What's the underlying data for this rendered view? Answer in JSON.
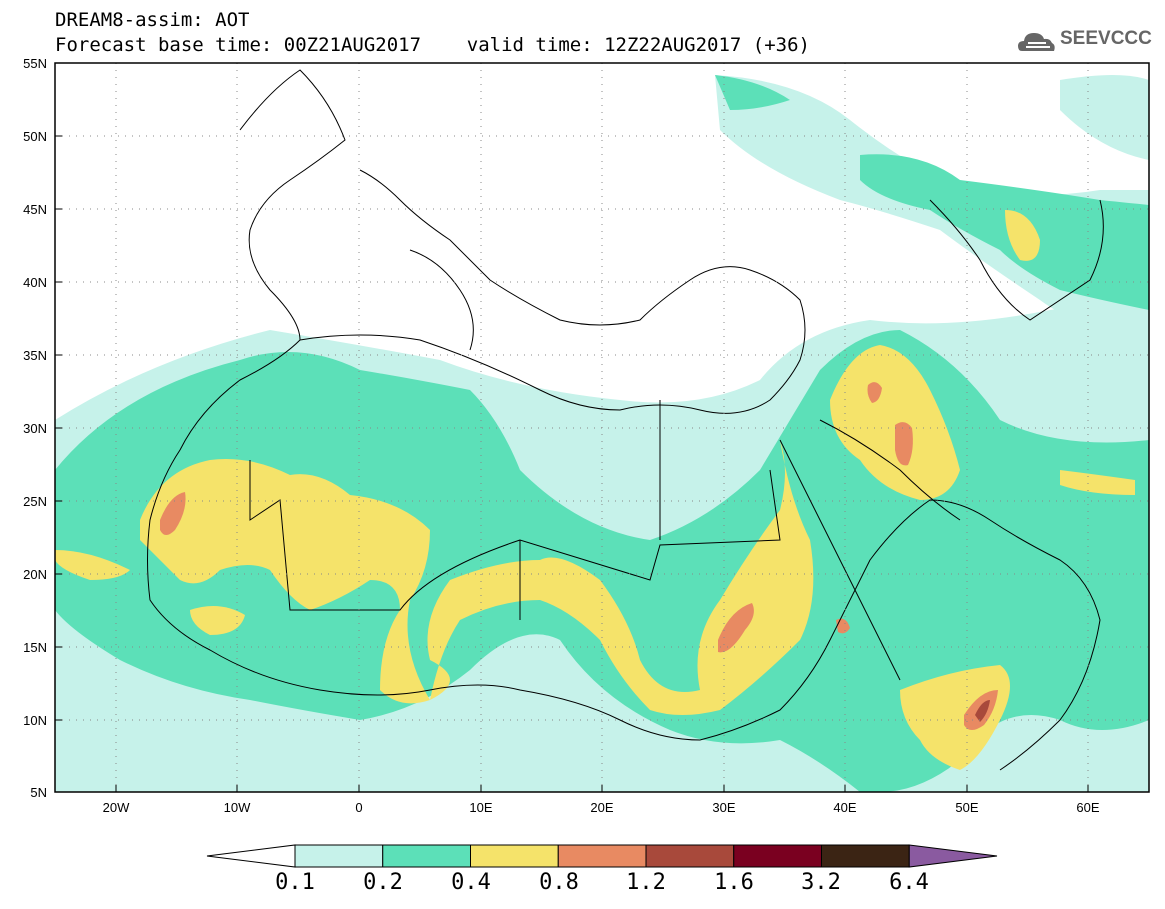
{
  "title": {
    "line1": "DREAM8-assim: AOT",
    "line2": "Forecast base time: 00Z21AUG2017    valid time: 12Z22AUG2017 (+36)"
  },
  "logo": {
    "text": "SEEVCCC",
    "icon": "cloud-icon"
  },
  "axes": {
    "lat_labels": [
      "55N",
      "50N",
      "45N",
      "40N",
      "35N",
      "30N",
      "25N",
      "20N",
      "15N",
      "10N",
      "5N"
    ],
    "lon_labels": [
      "20W",
      "10W",
      "0",
      "10E",
      "20E",
      "30E",
      "40E",
      "50E",
      "60E"
    ]
  },
  "colorbar": {
    "labels": [
      "0.1",
      "0.2",
      "0.4",
      "0.8",
      "1.2",
      "1.6",
      "3.2",
      "6.4"
    ],
    "colors": [
      "#ffffff",
      "#c6f2ea",
      "#5ce0b8",
      "#f5e36a",
      "#e88a62",
      "#a8493b",
      "#7a0020",
      "#3b2414",
      "#8a5aa0"
    ]
  }
}
